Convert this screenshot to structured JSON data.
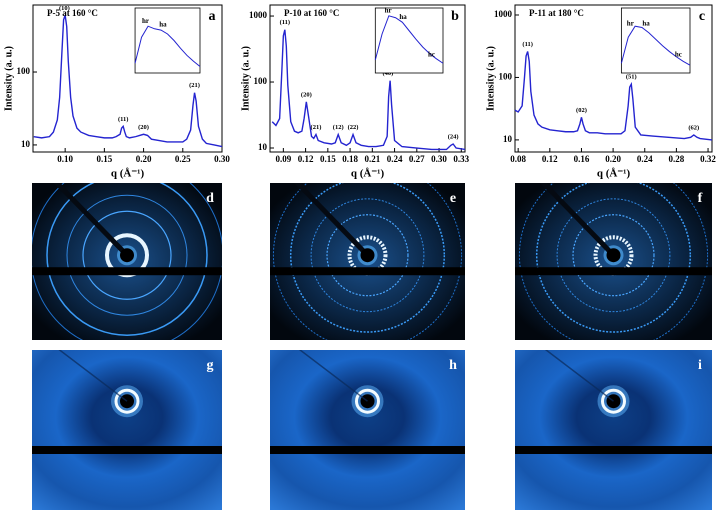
{
  "chart_data": [
    {
      "type": "line",
      "title": "P-5 at 160 °C",
      "panel": "a",
      "y_label": "Intensity (a. u.)",
      "x_label": "q (Å⁻¹)",
      "color": "#2424d0",
      "log_y": true,
      "xlim": [
        0.059,
        0.3
      ],
      "xticks": [
        {
          "value": 0.1,
          "label": "0.10"
        },
        0.15,
        {
          "value": 0.2,
          "label": "0.20"
        },
        0.25,
        {
          "value": 0.3,
          "label": "0.30"
        }
      ],
      "ylim": [
        8,
        830
      ],
      "yticks": [
        10,
        100
      ],
      "x": [
        0.06,
        0.07,
        0.08,
        0.085,
        0.09,
        0.093,
        0.096,
        0.098,
        0.1,
        0.102,
        0.104,
        0.107,
        0.11,
        0.115,
        0.12,
        0.13,
        0.14,
        0.15,
        0.16,
        0.165,
        0.17,
        0.172,
        0.174,
        0.176,
        0.178,
        0.182,
        0.19,
        0.195,
        0.2,
        0.205,
        0.21,
        0.22,
        0.23,
        0.24,
        0.25,
        0.255,
        0.26,
        0.263,
        0.265,
        0.267,
        0.27,
        0.275,
        0.28,
        0.29,
        0.3
      ],
      "values": [
        13,
        12.5,
        13,
        15,
        22,
        45,
        200,
        520,
        600,
        420,
        140,
        45,
        25,
        17,
        15,
        13.5,
        13,
        12.5,
        12.5,
        13,
        14,
        17,
        18,
        15,
        13,
        12.5,
        13,
        13.5,
        14,
        13.5,
        12,
        11.5,
        11,
        11,
        11,
        12,
        16,
        35,
        52,
        40,
        18,
        12,
        10.5,
        10,
        9.5
      ],
      "annotations": [
        {
          "text": "(10)",
          "x": 0.099,
          "y": 600
        },
        {
          "text": "(11)",
          "x": 0.174,
          "y": 18
        },
        {
          "text": "(20)",
          "x": 0.2,
          "y": 14
        },
        {
          "text": "(21)",
          "x": 0.265,
          "y": 52
        }
      ],
      "inset": {
        "xlim": [
          0,
          10
        ],
        "ylim": [
          0,
          1
        ],
        "x": [
          0,
          1,
          2,
          3,
          4,
          5,
          6,
          7,
          8,
          9,
          10
        ],
        "values": [
          0.15,
          0.55,
          0.72,
          0.68,
          0.66,
          0.6,
          0.5,
          0.38,
          0.27,
          0.18,
          0.1
        ],
        "labels": [
          {
            "text": "hr",
            "x": 1.6,
            "y": 0.72
          },
          {
            "text": "ha",
            "x": 4.3,
            "y": 0.66
          }
        ]
      }
    },
    {
      "type": "line",
      "title": "P-10 at 160 °C",
      "panel": "b",
      "y_label": "Intensity (a. u.)",
      "x_label": "q (Å⁻¹)",
      "color": "#2424d0",
      "log_y": true,
      "xlim": [
        0.072,
        0.335
      ],
      "xticks": [
        0.09,
        0.12,
        0.15,
        0.18,
        0.21,
        0.24,
        0.27,
        {
          "value": 0.3,
          "label": "0.30"
        },
        0.33
      ],
      "ylim": [
        8.7,
        1470
      ],
      "yticks": [
        10,
        100,
        1000
      ],
      "x": [
        0.075,
        0.08,
        0.085,
        0.088,
        0.09,
        0.092,
        0.094,
        0.096,
        0.1,
        0.105,
        0.11,
        0.115,
        0.118,
        0.121,
        0.124,
        0.128,
        0.131,
        0.134,
        0.137,
        0.145,
        0.155,
        0.16,
        0.164,
        0.168,
        0.175,
        0.18,
        0.184,
        0.188,
        0.195,
        0.205,
        0.215,
        0.225,
        0.23,
        0.232,
        0.234,
        0.236,
        0.24,
        0.25,
        0.27,
        0.29,
        0.31,
        0.316,
        0.319,
        0.323,
        0.335
      ],
      "values": [
        25,
        22,
        28,
        150,
        500,
        620,
        350,
        90,
        25,
        18,
        17,
        18,
        28,
        50,
        30,
        15,
        14,
        16,
        13,
        12,
        11.5,
        12,
        16,
        12,
        11,
        12,
        16,
        12,
        11,
        10.5,
        10.5,
        11,
        15,
        60,
        105,
        45,
        13,
        10.5,
        10,
        9.5,
        9.5,
        11,
        11.5,
        10,
        9.5
      ],
      "annotations": [
        {
          "text": "(11)",
          "x": 0.092,
          "y": 620
        },
        {
          "text": "(20)",
          "x": 0.121,
          "y": 50
        },
        {
          "text": "(21)",
          "x": 0.134,
          "y": 16
        },
        {
          "text": "(12)",
          "x": 0.164,
          "y": 16
        },
        {
          "text": "(22)",
          "x": 0.184,
          "y": 16
        },
        {
          "text": "(40)",
          "x": 0.231,
          "y": 105
        },
        {
          "text": "(24)",
          "x": 0.319,
          "y": 11.5
        }
      ],
      "inset": {
        "xlim": [
          0,
          10
        ],
        "ylim": [
          0,
          1
        ],
        "x": [
          0,
          1,
          2,
          3,
          4,
          5,
          6,
          7,
          8,
          9,
          10
        ],
        "values": [
          0.2,
          0.6,
          0.88,
          0.85,
          0.78,
          0.65,
          0.52,
          0.4,
          0.3,
          0.22,
          0.15
        ],
        "labels": [
          {
            "text": "hr",
            "x": 1.9,
            "y": 0.88
          },
          {
            "text": "ha",
            "x": 4.1,
            "y": 0.78
          },
          {
            "text": "hc",
            "x": 8.3,
            "y": 0.2
          }
        ]
      }
    },
    {
      "type": "line",
      "title": "P-11 at 180 °C",
      "panel": "c",
      "y_label": "Intensity (a. u.)",
      "x_label": "q (Å⁻¹)",
      "color": "#2424d0",
      "log_y": true,
      "xlim": [
        0.076,
        0.325
      ],
      "xticks": [
        0.08,
        0.12,
        0.16,
        {
          "value": 0.2,
          "label": "0.20"
        },
        0.24,
        0.28,
        0.32
      ],
      "ylim": [
        6.4,
        1445
      ],
      "yticks": [
        10,
        100,
        1000
      ],
      "x": [
        0.076,
        0.08,
        0.085,
        0.088,
        0.09,
        0.092,
        0.094,
        0.096,
        0.1,
        0.105,
        0.11,
        0.12,
        0.13,
        0.14,
        0.15,
        0.155,
        0.158,
        0.16,
        0.162,
        0.165,
        0.17,
        0.18,
        0.19,
        0.2,
        0.21,
        0.215,
        0.219,
        0.221,
        0.223,
        0.225,
        0.228,
        0.235,
        0.25,
        0.27,
        0.29,
        0.298,
        0.302,
        0.306,
        0.31,
        0.325
      ],
      "values": [
        30,
        28,
        35,
        100,
        220,
        260,
        180,
        60,
        25,
        18,
        16,
        14.5,
        14,
        13.5,
        13.5,
        14,
        18,
        23,
        18,
        14,
        13,
        13,
        12.5,
        12.5,
        12.5,
        14,
        35,
        70,
        78,
        45,
        16,
        12,
        11.5,
        11,
        10.5,
        11,
        12,
        11,
        10.5,
        10
      ],
      "annotations": [
        {
          "text": "(11)",
          "x": 0.092,
          "y": 260
        },
        {
          "text": "(02)",
          "x": 0.16,
          "y": 23
        },
        {
          "text": "(51)",
          "x": 0.223,
          "y": 78
        },
        {
          "text": "(62)",
          "x": 0.302,
          "y": 12
        }
      ],
      "inset": {
        "xlim": [
          0,
          10
        ],
        "ylim": [
          0,
          1
        ],
        "x": [
          0,
          1,
          2,
          3,
          4,
          5,
          6,
          7,
          8,
          9,
          10
        ],
        "values": [
          0.15,
          0.55,
          0.72,
          0.7,
          0.62,
          0.52,
          0.42,
          0.33,
          0.25,
          0.18,
          0.12
        ],
        "labels": [
          {
            "text": "hr",
            "x": 1.3,
            "y": 0.68
          },
          {
            "text": "ha",
            "x": 3.6,
            "y": 0.68
          },
          {
            "text": "hc",
            "x": 8.3,
            "y": 0.2
          }
        ]
      }
    }
  ],
  "panels": [
    {
      "label": "d"
    },
    {
      "label": "e"
    },
    {
      "label": "f"
    },
    {
      "label": "g"
    },
    {
      "label": "h"
    },
    {
      "label": "i"
    }
  ]
}
